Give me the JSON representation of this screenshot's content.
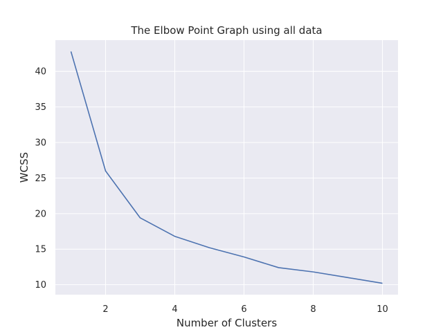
{
  "chart_data": {
    "type": "line",
    "title": "The Elbow Point Graph using all data",
    "xlabel": "Number of Clusters",
    "ylabel": "WCSS",
    "x": [
      1,
      2,
      3,
      4,
      5,
      6,
      7,
      8,
      9,
      10
    ],
    "series": [
      {
        "values": [
          42.8,
          26.0,
          19.4,
          16.8,
          15.2,
          13.9,
          12.4,
          11.8,
          11.0,
          10.2
        ]
      }
    ],
    "xlim": [
      0.55,
      10.45
    ],
    "ylim": [
      8.6,
      44.4
    ],
    "xticks": [
      2,
      4,
      6,
      8,
      10
    ],
    "yticks": [
      10,
      15,
      20,
      25,
      30,
      35,
      40
    ],
    "grid": true,
    "colors": {
      "background": "#eaeaf2",
      "grid": "#ffffff",
      "line": "#4c72b0",
      "text": "#262626"
    }
  }
}
